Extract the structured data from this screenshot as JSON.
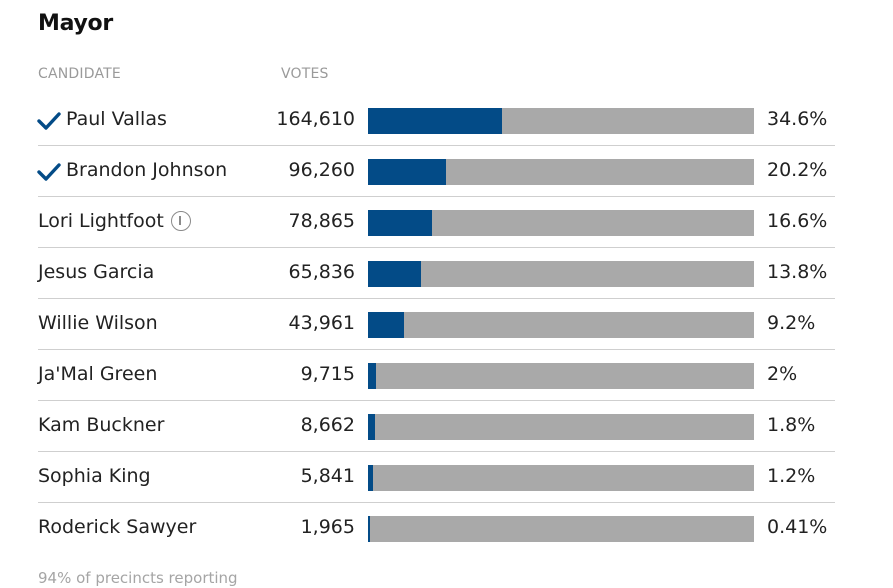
{
  "header": {
    "title": "Mayor",
    "candidate_col": "CANDIDATE",
    "votes_col": "VOTES"
  },
  "colors": {
    "bar_fill": "#034b87",
    "bar_track": "#a9a9a9",
    "check": "#034b87"
  },
  "chart_data": {
    "type": "bar",
    "title": "Mayor",
    "xlabel": "",
    "ylabel": "",
    "categories": [
      "Paul Vallas",
      "Brandon Johnson",
      "Lori Lightfoot",
      "Jesus Garcia",
      "Willie Wilson",
      "Ja'Mal Green",
      "Kam Buckner",
      "Sophia King",
      "Roderick Sawyer"
    ],
    "series": [
      {
        "name": "Votes",
        "values": [
          164610,
          96260,
          78865,
          65836,
          43961,
          9715,
          8662,
          5841,
          1965
        ]
      },
      {
        "name": "Percent",
        "values": [
          34.6,
          20.2,
          16.6,
          13.8,
          9.2,
          2,
          1.8,
          1.2,
          0.41
        ]
      }
    ],
    "xlim": [
      0,
      100
    ],
    "rows": [
      {
        "name": "Paul Vallas",
        "votes": "164,610",
        "pct_label": "34.6%",
        "pct": 34.6,
        "advanced": true,
        "info": false
      },
      {
        "name": "Brandon Johnson",
        "votes": "96,260",
        "pct_label": "20.2%",
        "pct": 20.2,
        "advanced": true,
        "info": false
      },
      {
        "name": "Lori Lightfoot",
        "votes": "78,865",
        "pct_label": "16.6%",
        "pct": 16.6,
        "advanced": false,
        "info": true
      },
      {
        "name": "Jesus Garcia",
        "votes": "65,836",
        "pct_label": "13.8%",
        "pct": 13.8,
        "advanced": false,
        "info": false
      },
      {
        "name": "Willie Wilson",
        "votes": "43,961",
        "pct_label": "9.2%",
        "pct": 9.2,
        "advanced": false,
        "info": false
      },
      {
        "name": "Ja'Mal Green",
        "votes": "9,715",
        "pct_label": "2%",
        "pct": 2,
        "advanced": false,
        "info": false
      },
      {
        "name": "Kam Buckner",
        "votes": "8,662",
        "pct_label": "1.8%",
        "pct": 1.8,
        "advanced": false,
        "info": false
      },
      {
        "name": "Sophia King",
        "votes": "5,841",
        "pct_label": "1.2%",
        "pct": 1.2,
        "advanced": false,
        "info": false
      },
      {
        "name": "Roderick Sawyer",
        "votes": "1,965",
        "pct_label": "0.41%",
        "pct": 0.41,
        "advanced": false,
        "info": false
      }
    ]
  },
  "footer": {
    "reporting": "94% of precincts reporting"
  }
}
